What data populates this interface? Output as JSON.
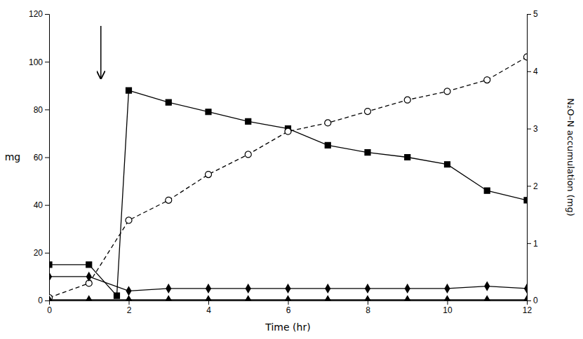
{
  "chart_data": {
    "type": "line",
    "xlabel": "Time (hr)",
    "ylabel": "mg",
    "y2label": "N₂O–N accumulation (mg)",
    "xlim": [
      0,
      12
    ],
    "ylim": [
      0,
      120
    ],
    "y2lim": [
      0,
      5
    ],
    "xticks": [
      0,
      2,
      4,
      6,
      8,
      10,
      12
    ],
    "yticks": [
      0,
      20,
      40,
      60,
      80,
      100,
      120
    ],
    "y2ticks": [
      0,
      1,
      2,
      3,
      4,
      5
    ],
    "grid": false,
    "series": [
      {
        "x": [
          0,
          1,
          1.7,
          2,
          3,
          4,
          5,
          6,
          7,
          8,
          9,
          10,
          11,
          12
        ],
        "values": [
          15,
          15,
          2,
          88,
          83,
          79,
          75,
          72,
          65,
          62,
          60,
          57,
          46,
          42
        ],
        "color": "#000000",
        "marker": "square",
        "line_style": "solid"
      },
      {
        "x": [
          0,
          1,
          2,
          3,
          4,
          5,
          6,
          7,
          8,
          9,
          10,
          11,
          12
        ],
        "values": [
          0.05,
          0.3,
          1.4,
          1.75,
          2.2,
          2.55,
          2.95,
          3.1,
          3.3,
          3.5,
          3.65,
          3.85,
          4.25
        ],
        "color": "#000000",
        "marker": "open-circle",
        "line_style": "dashed",
        "axis": "y2"
      },
      {
        "x": [
          0,
          1,
          2,
          3,
          4,
          5,
          6,
          7,
          8,
          9,
          10,
          11,
          12
        ],
        "values": [
          10,
          10,
          4,
          5,
          5,
          5,
          5,
          5,
          5,
          5,
          5,
          6,
          5
        ],
        "color": "#000000",
        "marker": "diamond",
        "line_style": "solid"
      },
      {
        "x": [
          0,
          1,
          2,
          3,
          4,
          5,
          6,
          7,
          8,
          9,
          10,
          11,
          12
        ],
        "values": [
          0.3,
          0.3,
          0.3,
          0.3,
          0.3,
          0.3,
          0.3,
          0.3,
          0.3,
          0.3,
          0.3,
          0.3,
          0.3
        ],
        "color": "#000000",
        "marker": "triangle",
        "line_style": "solid"
      }
    ],
    "annotations": [
      {
        "type": "arrow",
        "x": 1.3,
        "y_start": 115,
        "y_end": 93
      }
    ]
  }
}
